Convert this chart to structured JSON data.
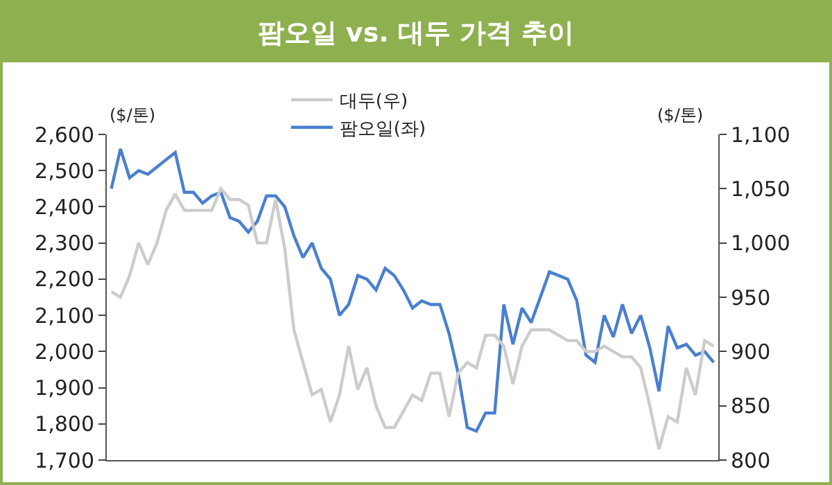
{
  "chart_data": {
    "type": "line",
    "title": "팜오일 vs. 대두 가격 추이",
    "ylabel": "($/톤)",
    "y2label": "($/톤)",
    "categories": [
      null,
      null,
      null,
      null,
      null,
      null,
      null,
      null,
      null,
      null,
      null,
      null,
      null,
      null,
      null,
      null,
      null,
      null,
      null,
      null,
      null,
      null,
      null,
      null,
      null,
      null,
      null,
      null,
      null,
      null,
      null,
      null,
      null,
      null,
      null,
      null,
      null,
      null,
      null,
      null,
      null,
      null,
      null,
      null,
      null,
      null,
      null,
      null,
      null,
      null,
      null,
      null,
      null,
      null,
      null,
      null,
      null,
      null,
      null,
      null,
      null,
      null,
      null,
      null,
      null,
      null,
      null
    ],
    "series": [
      {
        "name": "팜오일(좌)",
        "color": "#4a7fcf",
        "values": [
          2450,
          2560,
          2480,
          2500,
          2490,
          2510,
          2530,
          2550,
          2440,
          2440,
          2410,
          2430,
          2440,
          2370,
          2360,
          2330,
          2360,
          2430,
          2430,
          2400,
          2320,
          2260,
          2300,
          2230,
          2200,
          2100,
          2130,
          2210,
          2200,
          2170,
          2230,
          2210,
          2170,
          2120,
          2140,
          2130,
          2130,
          2050,
          1940,
          1790,
          1780,
          1830,
          1830,
          2130,
          2020,
          2120,
          2080,
          2150,
          2220,
          2210,
          2200,
          2140,
          1990,
          1970,
          2100,
          2040,
          2130,
          2050,
          2100,
          2010,
          1890,
          2070,
          2010,
          2020,
          1990,
          2000,
          1970
        ]
      },
      {
        "name": "대두(우)",
        "color": "#cccccc",
        "axis": "y2",
        "values": [
          955,
          950,
          970,
          1000,
          980,
          1000,
          1030,
          1045,
          1030,
          1030,
          1030,
          1030,
          1050,
          1040,
          1040,
          1035,
          1000,
          1000,
          1040,
          995,
          920,
          890,
          860,
          865,
          835,
          860,
          905,
          865,
          885,
          850,
          830,
          830,
          845,
          860,
          855,
          880,
          880,
          840,
          880,
          890,
          885,
          915,
          915,
          905,
          870,
          905,
          920,
          920,
          920,
          915,
          910,
          910,
          900,
          900,
          905,
          900,
          895,
          895,
          885,
          850,
          810,
          840,
          835,
          885,
          860,
          910,
          905
        ]
      }
    ],
    "ylim": [
      1700,
      2600
    ],
    "yticks": [
      {
        "value": 1700,
        "label": "1,700"
      },
      {
        "value": 1800,
        "label": "1,800"
      },
      {
        "value": 1900,
        "label": "1,900"
      },
      {
        "value": 2000,
        "label": "2,000"
      },
      {
        "value": 2100,
        "label": "2,100"
      },
      {
        "value": 2200,
        "label": "2,200"
      },
      {
        "value": 2300,
        "label": "2,300"
      },
      {
        "value": 2400,
        "label": "2,400"
      },
      {
        "value": 2500,
        "label": "2,500"
      },
      {
        "value": 2600,
        "label": "2,600"
      }
    ],
    "y2lim": [
      800,
      1100
    ],
    "y2ticks": [
      800,
      850,
      900,
      950,
      {
        "value": 1000,
        "label": "1,000"
      },
      {
        "value": 1050,
        "label": "1,050"
      },
      {
        "value": 1100,
        "label": "1,100"
      }
    ],
    "legend": "top",
    "grid": false,
    "marker": "none",
    "line_style": "solid"
  }
}
